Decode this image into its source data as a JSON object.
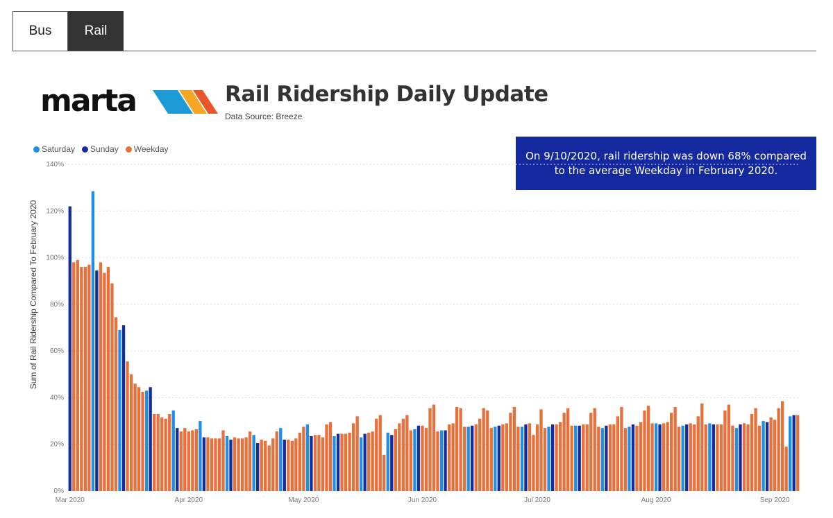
{
  "tabs": [
    {
      "label": "Bus",
      "active": false
    },
    {
      "label": "Rail",
      "active": true
    }
  ],
  "logo": {
    "text": "marta",
    "stripe_colors": [
      "#1C9AD6",
      "#F5A623",
      "#E8562A"
    ]
  },
  "header": {
    "title": "Rail Ridership Daily Update",
    "subtitle": "Data Source: Breeze"
  },
  "callout": {
    "text": "On 9/10/2020, rail ridership was down 68% compared to the average Weekday in February 2020."
  },
  "colors": {
    "Saturday": "#1E90E8",
    "Sunday": "#142C9C",
    "Weekday": "#E8703A",
    "callout_bg": "#1428A0",
    "gridline": "#dddddd"
  },
  "chart_data": {
    "type": "bar",
    "ylabel": "Sum of Rail Ridership Compared To February 2020",
    "ylim": [
      0,
      140
    ],
    "yticks": [
      "0%",
      "20%",
      "40%",
      "60%",
      "80%",
      "100%",
      "120%",
      "140%"
    ],
    "x_tick_labels": [
      "Mar 2020",
      "Apr 2020",
      "May 2020",
      "Jun 2020",
      "Jul 2020",
      "Aug 2020",
      "Sep 2020"
    ],
    "legend": [
      "Saturday",
      "Sunday",
      "Weekday"
    ],
    "legend_position": "top-left",
    "grid": true,
    "start_date": "2020-03-01",
    "end_date": "2020-09-10",
    "values": [
      122,
      98,
      99,
      96,
      96,
      97,
      128.5,
      94.5,
      98,
      93.5,
      96,
      89,
      74.5,
      69,
      71,
      55.5,
      50,
      46,
      44.5,
      42.5,
      43,
      44.5,
      33,
      33,
      31.5,
      31,
      33,
      34.5,
      27,
      25.5,
      27,
      25.5,
      26,
      26.5,
      30,
      23,
      23,
      22.5,
      22.5,
      22.5,
      26,
      23.5,
      22,
      23,
      22.5,
      22.5,
      23,
      25.5,
      24,
      20.5,
      22,
      21.5,
      19.5,
      22.5,
      25.5,
      27,
      22,
      22,
      21.5,
      22.5,
      25,
      27.5,
      28.5,
      23.5,
      24,
      24,
      23,
      28.5,
      29.5,
      23.5,
      24.5,
      24.5,
      24.5,
      25,
      29,
      32,
      23,
      24.5,
      25,
      25.5,
      31,
      32.5,
      15.5,
      25,
      24,
      26.5,
      29,
      31,
      32.5,
      26,
      26.5,
      28,
      28,
      27,
      35.5,
      37,
      25.5,
      26,
      26,
      28.5,
      29,
      36,
      35.5,
      27.5,
      27.5,
      28,
      28.5,
      31,
      35.5,
      34.5,
      27,
      27.5,
      28,
      28.5,
      29,
      33.5,
      36,
      27.5,
      27.5,
      28.5,
      29,
      24,
      28.5,
      35,
      27,
      27.5,
      28.5,
      28.5,
      29.5,
      33.5,
      35.5,
      28,
      28,
      28,
      28.5,
      28.5,
      33.5,
      35.5,
      27.5,
      27,
      28,
      28.5,
      28.5,
      32,
      36,
      27,
      27.5,
      28.5,
      28,
      29.5,
      34.5,
      36.5,
      29,
      29,
      28.5,
      29,
      29.5,
      33.5,
      36,
      27.5,
      28,
      28.5,
      29,
      28.5,
      32,
      37.5,
      28.5,
      29,
      28.5,
      28.5,
      28.5,
      34.5,
      37,
      28,
      27,
      28.5,
      29,
      28.5,
      33,
      35.5,
      28,
      30,
      29.5,
      31.5,
      30.5,
      35.5,
      38.5,
      19,
      32,
      32.5,
      32.5
    ]
  }
}
